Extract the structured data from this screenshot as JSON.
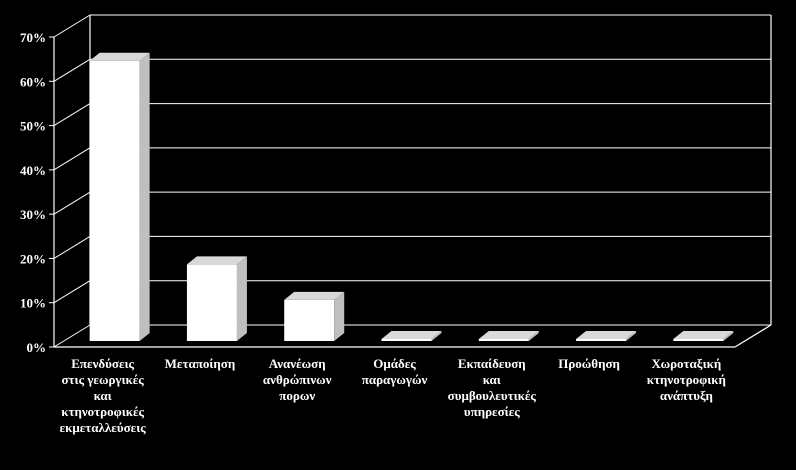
{
  "chart_data": {
    "type": "bar",
    "title": "",
    "xlabel": "",
    "ylabel": "",
    "ylim": [
      0,
      70
    ],
    "y_ticks": [
      "0%",
      "10%",
      "20%",
      "30%",
      "40%",
      "50%",
      "60%",
      "70%"
    ],
    "grid": true,
    "style": "3d",
    "bar_color": "#ffffff",
    "background_color": "#000000",
    "gridline_color": "#ffffff",
    "categories": [
      [
        "Επενδύσεις",
        "στις γεωργικές",
        "και",
        "κτηνοτροφικές",
        "εκμεταλλεύσεις"
      ],
      [
        "Μεταποίηση"
      ],
      [
        "Ανανέωση",
        "ανθρώπινων",
        "πορων"
      ],
      [
        "Ομάδες",
        "παραγωγών"
      ],
      [
        "Εκπαίδευση",
        "και",
        "συμβουλευτικές",
        "υπηρεσίες"
      ],
      [
        "Προώθηση"
      ],
      [
        "Χωροταξική",
        "κτηνοτροφική",
        "ανάπτυξη"
      ]
    ],
    "values": [
      66,
      20,
      12,
      1,
      1,
      1,
      0.5
    ]
  }
}
